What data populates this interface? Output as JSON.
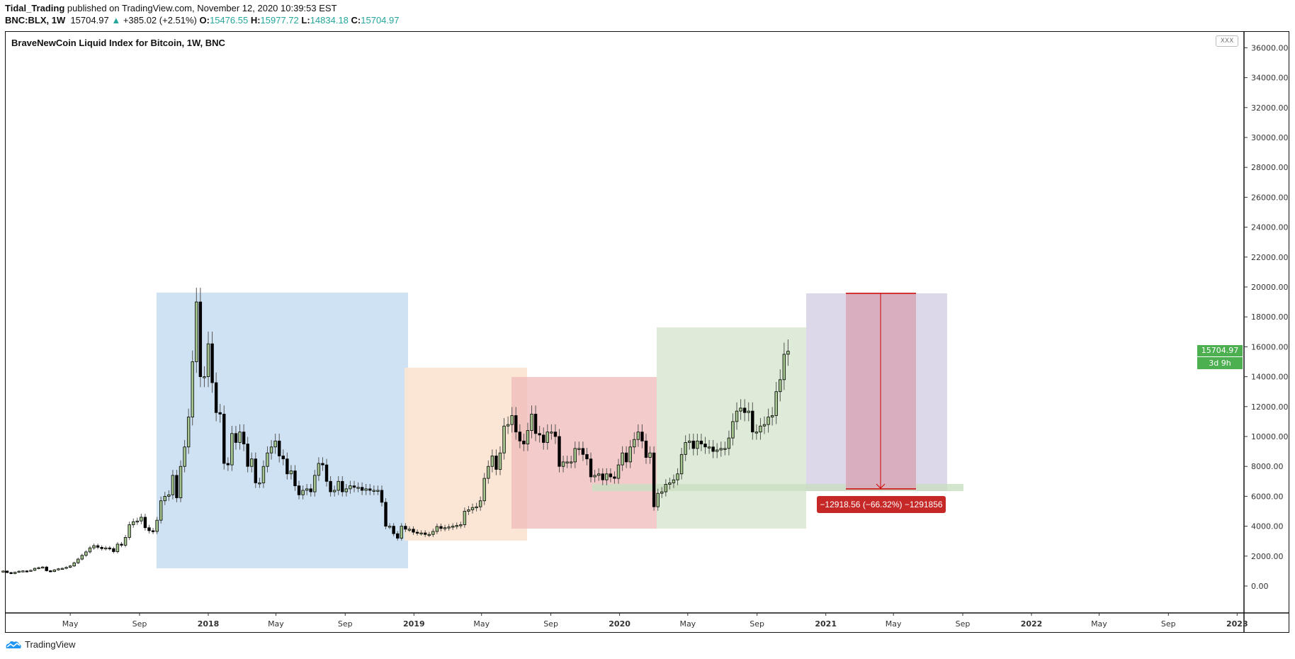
{
  "header": {
    "author": "Tidal_Trading",
    "published": "published on TradingView.com, November 12, 2020 10:39:53 EST",
    "symbol": "BNC:BLX, 1W",
    "last": "15704.97",
    "change": "+385.02 (+2.51%)",
    "o_label": "O:",
    "o": "15476.55",
    "h_label": "H:",
    "h": "15977.72",
    "l_label": "L:",
    "l": "14834.18",
    "c_label": "C:",
    "c": "15704.97"
  },
  "chart_title": "BraveNewCoin Liquid Index for Bitcoin, 1W, BNC",
  "toolbar_button": "XXX",
  "price_label": "15704.97",
  "countdown_label": "3d 9h",
  "measure_label": "−12918.56 (−66.32%) −1291856",
  "logo_text": "TradingView",
  "colors": {
    "up": "#a5c78f",
    "down": "#000000",
    "price_tag": "#4caf50",
    "measure": "#c62828",
    "blue_box": "#cfe2f3",
    "orange_box": "#fbe5d3",
    "red_box": "#f3c6c6",
    "green_box": "#deebd8",
    "purple_box": "#ddd8e9"
  },
  "chart_data": {
    "type": "candlestick",
    "interval": "1W",
    "start_week": "2017-01-02",
    "closes": [
      1000,
      900,
      830,
      920,
      990,
      1010,
      1000,
      1050,
      1180,
      1230,
      1270,
      1020,
      970,
      1080,
      1150,
      1180,
      1250,
      1340,
      1550,
      1800,
      2050,
      2280,
      2550,
      2700,
      2590,
      2500,
      2550,
      2500,
      2300,
      2800,
      2730,
      3250,
      4100,
      4300,
      4350,
      4600,
      3900,
      3700,
      3650,
      4400,
      5700,
      6000,
      6100,
      7400,
      5900,
      8000,
      9300,
      11300,
      15000,
      19000,
      14000,
      14000,
      16200,
      13600,
      11600,
      11500,
      8200,
      8100,
      10200,
      9600,
      10300,
      9500,
      8000,
      8500,
      6900,
      6900,
      8000,
      8900,
      9300,
      9700,
      8700,
      8500,
      7500,
      7700,
      6700,
      6100,
      6400,
      6500,
      6300,
      7400,
      8200,
      8100,
      7000,
      6300,
      6400,
      7000,
      6300,
      6500,
      6700,
      6600,
      6600,
      6400,
      6500,
      6400,
      6400,
      6400,
      5600,
      4000,
      4000,
      3500,
      3200,
      4000,
      3800,
      3800,
      3600,
      3550,
      3550,
      3450,
      3450,
      3650,
      3980,
      3850,
      3900,
      3950,
      4000,
      4050,
      4100,
      5000,
      5100,
      5250,
      5300,
      5700,
      7200,
      8000,
      8700,
      7800,
      8900,
      10700,
      10800,
      11400,
      10300,
      9700,
      9500,
      10400,
      11500,
      10200,
      10100,
      9600,
      10300,
      10300,
      10000,
      8000,
      8300,
      8300,
      8300,
      9200,
      9200,
      8800,
      8500,
      7300,
      7400,
      7500,
      7100,
      7500,
      7300,
      7200,
      8100,
      8900,
      8300,
      9300,
      9800,
      10300,
      9700,
      8600,
      8900,
      5300,
      6200,
      6300,
      6800,
      6900,
      7100,
      7500,
      8800,
      9600,
      9700,
      9200,
      9700,
      9500,
      9300,
      9300,
      9000,
      9100,
      9200,
      9200,
      9900,
      11000,
      11700,
      11900,
      11600,
      11700,
      10300,
      10300,
      10700,
      10800,
      11300,
      11400,
      13000,
      13800,
      15500,
      15704.97
    ],
    "y_ticks": [
      "0.00",
      "2000.00",
      "4000.00",
      "6000.00",
      "8000.00",
      "10000.00",
      "12000.00",
      "14000.00",
      "16000.00",
      "18000.00",
      "20000.00",
      "22000.00",
      "24000.00",
      "26000.00",
      "28000.00",
      "30000.00",
      "32000.00",
      "34000.00",
      "36000.00"
    ],
    "ylim": [
      -1500,
      37500
    ],
    "x_ticks": [
      {
        "label": "May",
        "date": "2017-05-01"
      },
      {
        "label": "Sep",
        "date": "2017-09-01"
      },
      {
        "label": "2018",
        "date": "2018-01-01",
        "major": true
      },
      {
        "label": "May",
        "date": "2018-05-01"
      },
      {
        "label": "Sep",
        "date": "2018-09-01"
      },
      {
        "label": "2019",
        "date": "2019-01-01",
        "major": true
      },
      {
        "label": "May",
        "date": "2019-05-01"
      },
      {
        "label": "Sep",
        "date": "2019-09-01"
      },
      {
        "label": "2020",
        "date": "2020-01-01",
        "major": true
      },
      {
        "label": "May",
        "date": "2020-05-01"
      },
      {
        "label": "Sep",
        "date": "2020-09-01"
      },
      {
        "label": "2021",
        "date": "2021-01-01",
        "major": true
      },
      {
        "label": "May",
        "date": "2021-05-01"
      },
      {
        "label": "Sep",
        "date": "2021-09-01"
      },
      {
        "label": "2022",
        "date": "2022-01-01",
        "major": true
      },
      {
        "label": "May",
        "date": "2022-05-01"
      },
      {
        "label": "Sep",
        "date": "2022-09-01"
      },
      {
        "label": "2023",
        "date": "2023-01-01",
        "major": true
      }
    ],
    "grid": false
  }
}
